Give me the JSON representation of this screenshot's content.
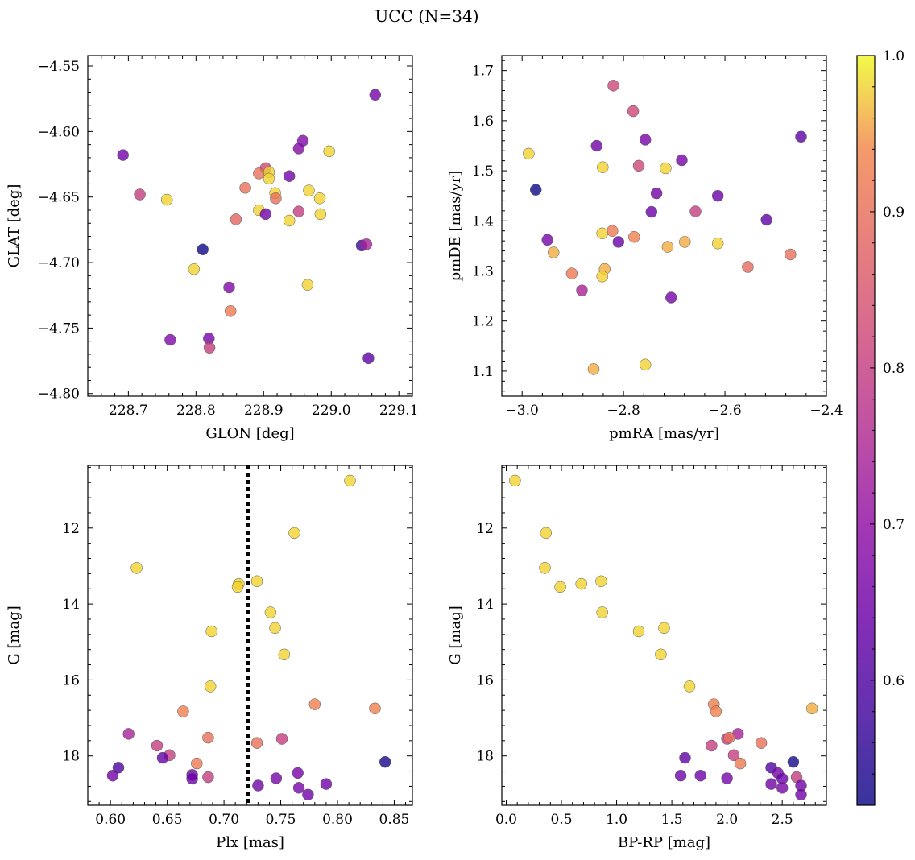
{
  "figure": {
    "title": "UCC (N=34)"
  },
  "colorbar": {
    "colormap": "plasma",
    "range": [
      0.52,
      1.0
    ],
    "ticks": [
      0.6,
      0.7,
      0.8,
      0.9,
      1.0
    ],
    "tick_labels": [
      "0.6",
      "0.7",
      "0.8",
      "0.9",
      "1.0"
    ]
  },
  "chart_data": [
    {
      "type": "scatter",
      "id": "glon_glat",
      "xlabel": "GLON [deg]",
      "ylabel": "GLAT [deg]",
      "xlim": [
        228.64,
        229.12
      ],
      "ylim": [
        -4.802,
        -4.542
      ],
      "xticks": [
        228.7,
        228.8,
        228.9,
        229.0,
        229.1
      ],
      "xtick_labels": [
        "228.7",
        "228.8",
        "228.9",
        "229.0",
        "229.1"
      ],
      "yticks": [
        -4.55,
        -4.6,
        -4.65,
        -4.7,
        -4.75,
        -4.8
      ],
      "ytick_labels": [
        "−4.55",
        "−4.60",
        "−4.65",
        "−4.70",
        "−4.75",
        "−4.80"
      ],
      "points": [
        {
          "x": 229.065,
          "y": -4.572,
          "c": 0.66
        },
        {
          "x": 228.692,
          "y": -4.618,
          "c": 0.65
        },
        {
          "x": 228.958,
          "y": -4.607,
          "c": 0.67
        },
        {
          "x": 228.952,
          "y": -4.613,
          "c": 0.68
        },
        {
          "x": 228.997,
          "y": -4.615,
          "c": 0.98
        },
        {
          "x": 228.938,
          "y": -4.634,
          "c": 0.65
        },
        {
          "x": 228.903,
          "y": -4.628,
          "c": 0.82
        },
        {
          "x": 228.893,
          "y": -4.632,
          "c": 0.9
        },
        {
          "x": 228.908,
          "y": -4.631,
          "c": 0.98
        },
        {
          "x": 228.908,
          "y": -4.636,
          "c": 0.98
        },
        {
          "x": 228.873,
          "y": -4.643,
          "c": 0.9
        },
        {
          "x": 228.917,
          "y": -4.647,
          "c": 0.98
        },
        {
          "x": 228.918,
          "y": -4.651,
          "c": 0.9
        },
        {
          "x": 228.967,
          "y": -4.645,
          "c": 0.98
        },
        {
          "x": 228.983,
          "y": -4.651,
          "c": 0.98
        },
        {
          "x": 228.717,
          "y": -4.648,
          "c": 0.8
        },
        {
          "x": 228.757,
          "y": -4.652,
          "c": 0.98
        },
        {
          "x": 228.893,
          "y": -4.66,
          "c": 0.98
        },
        {
          "x": 228.903,
          "y": -4.663,
          "c": 0.65
        },
        {
          "x": 228.952,
          "y": -4.661,
          "c": 0.8
        },
        {
          "x": 228.984,
          "y": -4.663,
          "c": 0.98
        },
        {
          "x": 228.859,
          "y": -4.667,
          "c": 0.88
        },
        {
          "x": 228.938,
          "y": -4.668,
          "c": 0.98
        },
        {
          "x": 228.81,
          "y": -4.69,
          "c": 0.52
        },
        {
          "x": 229.045,
          "y": -4.687,
          "c": 0.57
        },
        {
          "x": 229.052,
          "y": -4.686,
          "c": 0.74
        },
        {
          "x": 228.797,
          "y": -4.705,
          "c": 0.98
        },
        {
          "x": 228.849,
          "y": -4.719,
          "c": 0.67
        },
        {
          "x": 228.965,
          "y": -4.717,
          "c": 0.98
        },
        {
          "x": 228.851,
          "y": -4.737,
          "c": 0.92
        },
        {
          "x": 228.762,
          "y": -4.759,
          "c": 0.67
        },
        {
          "x": 228.819,
          "y": -4.758,
          "c": 0.66
        },
        {
          "x": 228.82,
          "y": -4.765,
          "c": 0.8
        },
        {
          "x": 229.055,
          "y": -4.773,
          "c": 0.62
        }
      ]
    },
    {
      "type": "scatter",
      "id": "pmra_pmde",
      "xlabel": "pmRA [mas/yr]",
      "ylabel": "pmDE [mas/yr]",
      "xlim": [
        -3.04,
        -2.4
      ],
      "ylim": [
        1.05,
        1.73
      ],
      "xticks": [
        -3.0,
        -2.8,
        -2.6,
        -2.4
      ],
      "xtick_labels": [
        "−3.0",
        "−2.8",
        "−2.6",
        "−2.4"
      ],
      "yticks": [
        1.1,
        1.2,
        1.3,
        1.4,
        1.5,
        1.6,
        1.7
      ],
      "ytick_labels": [
        "1.1",
        "1.2",
        "1.3",
        "1.4",
        "1.5",
        "1.6",
        "1.7"
      ],
      "points": [
        {
          "x": -2.82,
          "y": 1.67,
          "c": 0.82
        },
        {
          "x": -2.781,
          "y": 1.619,
          "c": 0.82
        },
        {
          "x": -2.45,
          "y": 1.568,
          "c": 0.62
        },
        {
          "x": -2.757,
          "y": 1.562,
          "c": 0.66
        },
        {
          "x": -2.853,
          "y": 1.55,
          "c": 0.65
        },
        {
          "x": -2.987,
          "y": 1.534,
          "c": 0.98
        },
        {
          "x": -2.685,
          "y": 1.521,
          "c": 0.66
        },
        {
          "x": -2.77,
          "y": 1.51,
          "c": 0.82
        },
        {
          "x": -2.841,
          "y": 1.507,
          "c": 0.98
        },
        {
          "x": -2.717,
          "y": 1.505,
          "c": 0.98
        },
        {
          "x": -2.973,
          "y": 1.462,
          "c": 0.52
        },
        {
          "x": -2.735,
          "y": 1.455,
          "c": 0.65
        },
        {
          "x": -2.614,
          "y": 1.45,
          "c": 0.64
        },
        {
          "x": -2.658,
          "y": 1.419,
          "c": 0.8
        },
        {
          "x": -2.745,
          "y": 1.418,
          "c": 0.64
        },
        {
          "x": -2.518,
          "y": 1.402,
          "c": 0.62
        },
        {
          "x": -2.822,
          "y": 1.38,
          "c": 0.92
        },
        {
          "x": -2.842,
          "y": 1.375,
          "c": 0.98
        },
        {
          "x": -2.779,
          "y": 1.368,
          "c": 0.93
        },
        {
          "x": -2.95,
          "y": 1.362,
          "c": 0.66
        },
        {
          "x": -2.679,
          "y": 1.358,
          "c": 0.96
        },
        {
          "x": -2.81,
          "y": 1.358,
          "c": 0.64
        },
        {
          "x": -2.614,
          "y": 1.355,
          "c": 0.98
        },
        {
          "x": -2.713,
          "y": 1.348,
          "c": 0.96
        },
        {
          "x": -2.938,
          "y": 1.337,
          "c": 0.96
        },
        {
          "x": -2.471,
          "y": 1.333,
          "c": 0.9
        },
        {
          "x": -2.555,
          "y": 1.308,
          "c": 0.89
        },
        {
          "x": -2.837,
          "y": 1.304,
          "c": 0.96
        },
        {
          "x": -2.902,
          "y": 1.295,
          "c": 0.92
        },
        {
          "x": -2.842,
          "y": 1.289,
          "c": 0.98
        },
        {
          "x": -2.882,
          "y": 1.261,
          "c": 0.74
        },
        {
          "x": -2.706,
          "y": 1.247,
          "c": 0.66
        },
        {
          "x": -2.757,
          "y": 1.113,
          "c": 0.98
        },
        {
          "x": -2.859,
          "y": 1.104,
          "c": 0.96
        }
      ]
    },
    {
      "type": "scatter",
      "id": "plx_g",
      "xlabel": "Plx [mas]",
      "ylabel": "G [mag]",
      "xlim": [
        0.58,
        0.866
      ],
      "ylim": [
        19.3,
        10.35
      ],
      "y_inverted": true,
      "xticks": [
        0.6,
        0.65,
        0.7,
        0.75,
        0.8,
        0.85
      ],
      "xtick_labels": [
        "0.60",
        "0.65",
        "0.70",
        "0.75",
        "0.80",
        "0.85"
      ],
      "yticks": [
        12,
        14,
        16,
        18
      ],
      "ytick_labels": [
        "12",
        "14",
        "16",
        "18"
      ],
      "vline": {
        "x": 0.721,
        "style": "dotted"
      },
      "points": [
        {
          "x": 0.811,
          "y": 10.75,
          "c": 0.98
        },
        {
          "x": 0.762,
          "y": 12.13,
          "c": 0.98
        },
        {
          "x": 0.623,
          "y": 13.05,
          "c": 0.98
        },
        {
          "x": 0.729,
          "y": 13.4,
          "c": 0.98
        },
        {
          "x": 0.713,
          "y": 13.47,
          "c": 0.98
        },
        {
          "x": 0.712,
          "y": 13.55,
          "c": 0.98
        },
        {
          "x": 0.741,
          "y": 14.22,
          "c": 0.98
        },
        {
          "x": 0.745,
          "y": 14.63,
          "c": 0.98
        },
        {
          "x": 0.689,
          "y": 14.72,
          "c": 0.98
        },
        {
          "x": 0.753,
          "y": 15.33,
          "c": 0.98
        },
        {
          "x": 0.688,
          "y": 16.17,
          "c": 0.98
        },
        {
          "x": 0.78,
          "y": 16.64,
          "c": 0.93
        },
        {
          "x": 0.833,
          "y": 16.75,
          "c": 0.93
        },
        {
          "x": 0.664,
          "y": 16.83,
          "c": 0.93
        },
        {
          "x": 0.616,
          "y": 17.42,
          "c": 0.74
        },
        {
          "x": 0.686,
          "y": 17.52,
          "c": 0.9
        },
        {
          "x": 0.751,
          "y": 17.55,
          "c": 0.8
        },
        {
          "x": 0.729,
          "y": 17.66,
          "c": 0.9
        },
        {
          "x": 0.641,
          "y": 17.73,
          "c": 0.8
        },
        {
          "x": 0.652,
          "y": 17.98,
          "c": 0.8
        },
        {
          "x": 0.646,
          "y": 18.05,
          "c": 0.63
        },
        {
          "x": 0.842,
          "y": 18.16,
          "c": 0.53
        },
        {
          "x": 0.676,
          "y": 18.2,
          "c": 0.92
        },
        {
          "x": 0.607,
          "y": 18.31,
          "c": 0.6
        },
        {
          "x": 0.765,
          "y": 18.45,
          "c": 0.66
        },
        {
          "x": 0.672,
          "y": 18.5,
          "c": 0.65
        },
        {
          "x": 0.602,
          "y": 18.52,
          "c": 0.65
        },
        {
          "x": 0.686,
          "y": 18.56,
          "c": 0.8
        },
        {
          "x": 0.672,
          "y": 18.6,
          "c": 0.64
        },
        {
          "x": 0.746,
          "y": 18.59,
          "c": 0.66
        },
        {
          "x": 0.73,
          "y": 18.78,
          "c": 0.65
        },
        {
          "x": 0.79,
          "y": 18.74,
          "c": 0.65
        },
        {
          "x": 0.766,
          "y": 18.84,
          "c": 0.66
        },
        {
          "x": 0.774,
          "y": 19.02,
          "c": 0.65
        }
      ]
    },
    {
      "type": "scatter",
      "id": "bprp_g",
      "xlabel": "BP-RP [mag]",
      "ylabel": "G [mag]",
      "xlim": [
        -0.04,
        2.9
      ],
      "ylim": [
        19.3,
        10.35
      ],
      "y_inverted": true,
      "xticks": [
        0.0,
        0.5,
        1.0,
        1.5,
        2.0,
        2.5
      ],
      "xtick_labels": [
        "0.0",
        "0.5",
        "1.0",
        "1.5",
        "2.0",
        "2.5"
      ],
      "yticks": [
        12,
        14,
        16,
        18
      ],
      "ytick_labels": [
        "12",
        "14",
        "16",
        "18"
      ],
      "points": [
        {
          "x": 0.08,
          "y": 10.75,
          "c": 0.98
        },
        {
          "x": 0.36,
          "y": 12.13,
          "c": 0.98
        },
        {
          "x": 0.35,
          "y": 13.05,
          "c": 0.98
        },
        {
          "x": 0.49,
          "y": 13.55,
          "c": 0.98
        },
        {
          "x": 0.68,
          "y": 13.47,
          "c": 0.98
        },
        {
          "x": 0.86,
          "y": 13.4,
          "c": 0.98
        },
        {
          "x": 0.87,
          "y": 14.22,
          "c": 0.98
        },
        {
          "x": 1.43,
          "y": 14.63,
          "c": 0.98
        },
        {
          "x": 1.2,
          "y": 14.72,
          "c": 0.98
        },
        {
          "x": 1.4,
          "y": 15.33,
          "c": 0.98
        },
        {
          "x": 1.66,
          "y": 16.17,
          "c": 0.98
        },
        {
          "x": 1.88,
          "y": 16.64,
          "c": 0.93
        },
        {
          "x": 1.9,
          "y": 16.83,
          "c": 0.93
        },
        {
          "x": 2.77,
          "y": 16.75,
          "c": 0.96
        },
        {
          "x": 2.1,
          "y": 17.42,
          "c": 0.74
        },
        {
          "x": 2.0,
          "y": 17.55,
          "c": 0.8
        },
        {
          "x": 2.02,
          "y": 17.52,
          "c": 0.9
        },
        {
          "x": 2.31,
          "y": 17.66,
          "c": 0.9
        },
        {
          "x": 1.86,
          "y": 17.73,
          "c": 0.8
        },
        {
          "x": 2.06,
          "y": 17.98,
          "c": 0.8
        },
        {
          "x": 1.62,
          "y": 18.05,
          "c": 0.63
        },
        {
          "x": 2.12,
          "y": 18.2,
          "c": 0.92
        },
        {
          "x": 2.6,
          "y": 18.16,
          "c": 0.53
        },
        {
          "x": 2.4,
          "y": 18.31,
          "c": 0.6
        },
        {
          "x": 2.46,
          "y": 18.45,
          "c": 0.66
        },
        {
          "x": 1.58,
          "y": 18.52,
          "c": 0.65
        },
        {
          "x": 1.76,
          "y": 18.52,
          "c": 0.65
        },
        {
          "x": 2.63,
          "y": 18.56,
          "c": 0.8
        },
        {
          "x": 2.5,
          "y": 18.6,
          "c": 0.64
        },
        {
          "x": 2.4,
          "y": 18.74,
          "c": 0.65
        },
        {
          "x": 2.67,
          "y": 18.78,
          "c": 0.65
        },
        {
          "x": 2.5,
          "y": 18.84,
          "c": 0.66
        },
        {
          "x": 2.67,
          "y": 19.02,
          "c": 0.65
        },
        {
          "x": 2.0,
          "y": 18.59,
          "c": 0.66
        }
      ]
    }
  ]
}
